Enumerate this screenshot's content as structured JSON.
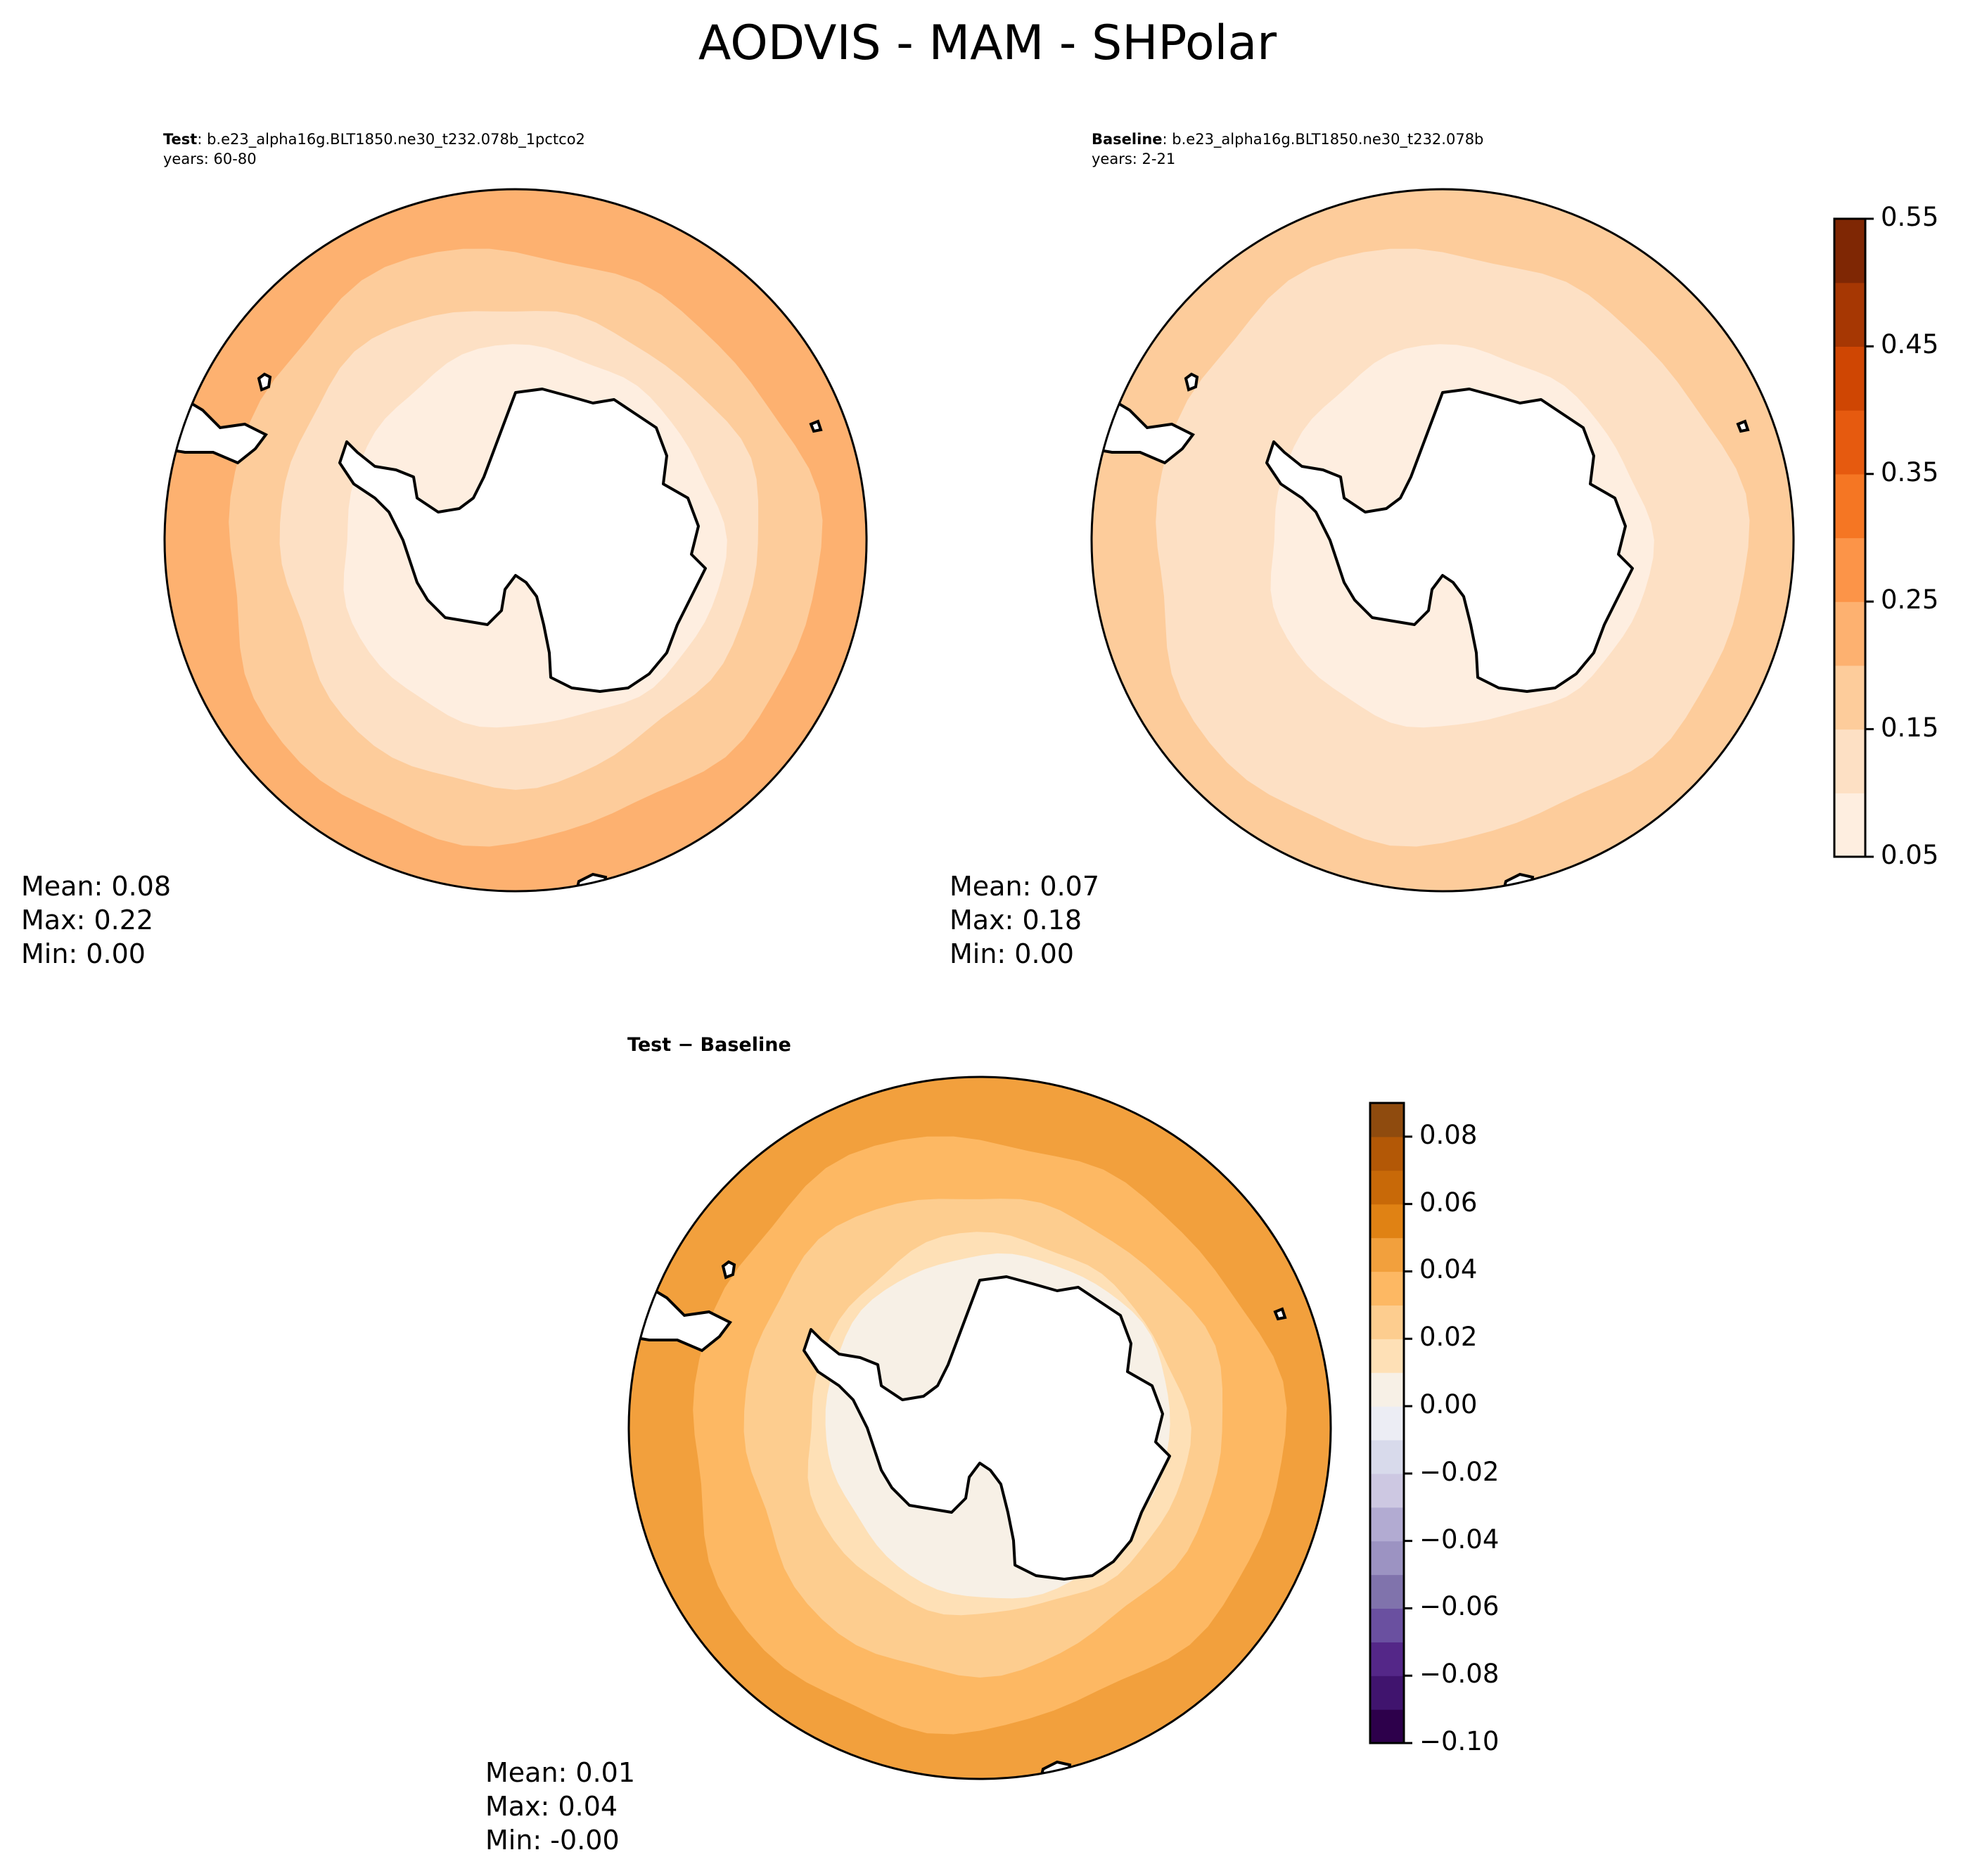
{
  "figure": {
    "title": "AODVIS - MAM - SHPolar"
  },
  "panels": {
    "test": {
      "label": "Test",
      "case": "b.e23_alpha16g.BLT1850.ne30_t232.078b_1pctco2",
      "years": "years: 60-80",
      "mean": "Mean:  0.08",
      "max": "Max:  0.22",
      "min": "Min:  0.00"
    },
    "baseline": {
      "label": "Baseline",
      "case": "b.e23_alpha16g.BLT1850.ne30_t232.078b",
      "years": "years: 2-21",
      "mean": "Mean:  0.07",
      "max": "Max:  0.18",
      "min": "Min:  0.00"
    },
    "diff": {
      "label": "Test − Baseline",
      "mean": "Mean:  0.01",
      "max": "Max:  0.04",
      "min": "Min: -0.00"
    }
  },
  "colorbars": {
    "main": {
      "ticks": [
        "0.05",
        "0.15",
        "0.25",
        "0.35",
        "0.45",
        "0.55"
      ],
      "tick_values": [
        0.05,
        0.15,
        0.25,
        0.35,
        0.45,
        0.55
      ],
      "levels": [
        0.05,
        0.1,
        0.15,
        0.2,
        0.25,
        0.3,
        0.35,
        0.4,
        0.45,
        0.5,
        0.55
      ],
      "colors": [
        "#feeee0",
        "#fde0c4",
        "#fdcc9b",
        "#fdb170",
        "#fc9448",
        "#f57623",
        "#e65a0f",
        "#cf4603",
        "#a63703",
        "#7f2704"
      ]
    },
    "diff": {
      "ticks": [
        "0.08",
        "0.06",
        "0.04",
        "0.02",
        "0.00",
        "−0.02",
        "−0.04",
        "−0.06",
        "−0.08",
        "−0.10"
      ],
      "tick_values": [
        0.08,
        0.06,
        0.04,
        0.02,
        0.0,
        -0.02,
        -0.04,
        -0.06,
        -0.08,
        -0.1
      ],
      "levels": [
        -0.1,
        -0.09,
        -0.08,
        -0.07,
        -0.06,
        -0.05,
        -0.04,
        -0.03,
        -0.02,
        -0.01,
        0.0,
        0.01,
        0.02,
        0.03,
        0.04,
        0.05,
        0.06,
        0.07,
        0.08,
        0.09
      ],
      "colors": [
        "#2d004b",
        "#40146e",
        "#542788",
        "#6a50a0",
        "#8073ac",
        "#9c93c2",
        "#b2abd2",
        "#cdc8e2",
        "#d8daeb",
        "#ecedf4",
        "#f7f0e6",
        "#fee0b6",
        "#fdcd8f",
        "#fdb863",
        "#f2a03d",
        "#e08214",
        "#c86908",
        "#b35806",
        "#8f4b0e"
      ]
    }
  },
  "map_fields": {
    "test": {
      "inner": 0.0,
      "band1": 0.06,
      "band2": 0.12,
      "band3": 0.17,
      "outer": 0.21
    },
    "baseline": {
      "inner": 0.0,
      "band1": 0.06,
      "band2": 0.11,
      "band3": 0.14,
      "outer": 0.17
    },
    "diff": {
      "inner": 0.005,
      "band1": 0.015,
      "band2": 0.025,
      "band3": 0.035,
      "outer": 0.04
    }
  },
  "style": {
    "coast": "#000000",
    "frame": "#000000",
    "land": "#ffffff"
  }
}
